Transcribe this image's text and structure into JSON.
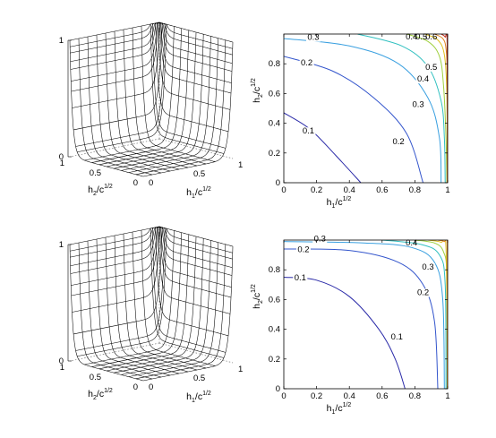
{
  "chart_data": [
    {
      "type": "surface",
      "panel": "top-left",
      "x_label": {
        "base": "h",
        "sub": "1",
        "tail": "/c",
        "sup": "1/2"
      },
      "y_label": {
        "base": "h",
        "sub": "2",
        "tail": "/c",
        "sup": "1/2"
      },
      "z_ticks": [
        "0",
        "1"
      ],
      "x_ticks": [
        "0",
        "0.5",
        "1"
      ],
      "y_ticks": [
        "0",
        "0.5",
        "1"
      ],
      "xlim": [
        0,
        1
      ],
      "ylim": [
        0,
        1
      ],
      "zlim": [
        0,
        1
      ],
      "surface_shape": "near 0 across the interior, rising steeply to 1 along the h1 = 1 and h2 = 1 edges"
    },
    {
      "type": "contour",
      "panel": "top-right",
      "x_label": {
        "base": "h",
        "sub": "1",
        "tail": "/c",
        "sup": "1/2"
      },
      "y_label": {
        "base": "h",
        "sub": "2",
        "tail": "/c",
        "sup": "1/2"
      },
      "x_ticks": [
        "0",
        "0.2",
        "0.4",
        "0.6",
        "0.8",
        "1"
      ],
      "y_ticks": [
        "0",
        "0.2",
        "0.4",
        "0.6",
        "0.8"
      ],
      "xlim": [
        0,
        1
      ],
      "ylim": [
        0,
        1
      ],
      "levels": [
        {
          "value": "0.1",
          "color": "#2a2aa8",
          "points": [
            [
              0,
              0.47
            ],
            [
              0.16,
              0.36
            ],
            [
              0.32,
              0.18
            ],
            [
              0.47,
              0
            ]
          ],
          "label_at": [
            0.15,
            0.33
          ]
        },
        {
          "value": "0.2",
          "color": "#3355cc",
          "points": [
            [
              0,
              0.85
            ],
            [
              0.3,
              0.75
            ],
            [
              0.55,
              0.57
            ],
            [
              0.75,
              0.33
            ],
            [
              0.85,
              0
            ]
          ],
          "label_at": [
            0.14,
            0.79
          ]
        },
        {
          "value": "0.2",
          "color": "#3355cc",
          "points": [],
          "label_at": [
            0.7,
            0.26
          ]
        },
        {
          "value": "0.3",
          "color": "#3aa0e0",
          "points": [
            [
              0,
              0.97
            ],
            [
              0.4,
              0.92
            ],
            [
              0.7,
              0.8
            ],
            [
              0.88,
              0.57
            ],
            [
              0.95,
              0.3
            ],
            [
              0.96,
              0
            ]
          ],
          "label_at": [
            0.18,
            0.96
          ]
        },
        {
          "value": "0.3",
          "color": "#3aa0e0",
          "points": [],
          "label_at": [
            0.82,
            0.51
          ]
        },
        {
          "value": "0.4",
          "color": "#30c0c0",
          "points": [
            [
              0.45,
              1
            ],
            [
              0.72,
              0.92
            ],
            [
              0.88,
              0.78
            ],
            [
              0.96,
              0.55
            ],
            [
              0.98,
              0.3
            ],
            [
              0.985,
              0
            ]
          ],
          "label_at": [
            0.85,
            0.68
          ]
        },
        {
          "value": "0.5",
          "color": "#a0d040",
          "points": [
            [
              0.75,
              1
            ],
            [
              0.88,
              0.95
            ],
            [
              0.95,
              0.85
            ],
            [
              0.975,
              0.65
            ],
            [
              0.99,
              0.3
            ],
            [
              0.995,
              0
            ]
          ],
          "label_at": [
            0.9,
            0.76
          ]
        },
        {
          "value": "0.6",
          "color": "#e0c020",
          "points": [
            [
              0.86,
              1
            ],
            [
              0.94,
              0.96
            ],
            [
              0.98,
              0.86
            ],
            [
              0.995,
              0.6
            ],
            [
              0.998,
              0
            ]
          ],
          "label_at": []
        },
        {
          "value": "0.7",
          "color": "#e08020",
          "points": [
            [
              0.92,
              1
            ],
            [
              0.97,
              0.97
            ],
            [
              0.99,
              0.9
            ],
            [
              0.998,
              0.7
            ],
            [
              0.999,
              0
            ]
          ],
          "label_at": []
        },
        {
          "value": "0.8",
          "color": "#c03020",
          "points": [
            [
              0.96,
              1
            ],
            [
              0.985,
              0.98
            ],
            [
              0.997,
              0.93
            ],
            [
              0.9995,
              0
            ]
          ],
          "label_at": []
        }
      ],
      "edge_labels": [
        "0.4",
        "0.5",
        "0.6"
      ]
    },
    {
      "type": "surface",
      "panel": "bottom-left",
      "x_label": {
        "base": "h",
        "sub": "1",
        "tail": "/c",
        "sup": "1/2"
      },
      "y_label": {
        "base": "h",
        "sub": "2",
        "tail": "/c",
        "sup": "1/2"
      },
      "z_ticks": [
        "0",
        "1"
      ],
      "x_ticks": [
        "0",
        "0.5",
        "1"
      ],
      "y_ticks": [
        "0",
        "0.5",
        "1"
      ],
      "xlim": [
        0,
        1
      ],
      "ylim": [
        0,
        1
      ],
      "zlim": [
        0,
        1
      ],
      "surface_shape": "near 0 across the interior, rising steeply to 1 along the h1 = 1 and h2 = 1 edges"
    },
    {
      "type": "contour",
      "panel": "bottom-right",
      "x_label": {
        "base": "h",
        "sub": "1",
        "tail": "/c",
        "sup": "1/2"
      },
      "y_label": {
        "base": "h",
        "sub": "2",
        "tail": "/c",
        "sup": "1/2"
      },
      "x_ticks": [
        "0",
        "0.2",
        "0.4",
        "0.6",
        "0.8",
        "1"
      ],
      "y_ticks": [
        "0",
        "0.2",
        "0.4",
        "0.6",
        "0.8"
      ],
      "xlim": [
        0,
        1
      ],
      "ylim": [
        0,
        1
      ],
      "levels": [
        {
          "value": "0.1",
          "color": "#2a2aa8",
          "points": [
            [
              0,
              0.75
            ],
            [
              0.2,
              0.73
            ],
            [
              0.4,
              0.62
            ],
            [
              0.58,
              0.4
            ],
            [
              0.68,
              0.2
            ],
            [
              0.74,
              0
            ]
          ],
          "label_at": [
            0.1,
            0.73
          ]
        },
        {
          "value": "0.1",
          "color": "#2a2aa8",
          "points": [],
          "label_at": [
            0.69,
            0.33
          ]
        },
        {
          "value": "0.2",
          "color": "#3355cc",
          "points": [
            [
              0,
              0.94
            ],
            [
              0.4,
              0.93
            ],
            [
              0.7,
              0.85
            ],
            [
              0.85,
              0.7
            ],
            [
              0.92,
              0.45
            ],
            [
              0.94,
              0
            ]
          ],
          "label_at": [
            0.12,
            0.92
          ]
        },
        {
          "value": "0.2",
          "color": "#3355cc",
          "points": [],
          "label_at": [
            0.85,
            0.63
          ]
        },
        {
          "value": "0.3",
          "color": "#3aa0e0",
          "points": [
            [
              0,
              0.99
            ],
            [
              0.5,
              0.98
            ],
            [
              0.78,
              0.95
            ],
            [
              0.92,
              0.85
            ],
            [
              0.97,
              0.6
            ],
            [
              0.98,
              0
            ]
          ],
          "label_at": [
            0.22,
            0.99
          ]
        },
        {
          "value": "0.3",
          "color": "#3aa0e0",
          "points": [],
          "label_at": [
            0.88,
            0.8
          ]
        },
        {
          "value": "0.4",
          "color": "#30c0c0",
          "points": [
            [
              0.6,
              1
            ],
            [
              0.84,
              0.97
            ],
            [
              0.95,
              0.9
            ],
            [
              0.985,
              0.7
            ],
            [
              0.99,
              0
            ]
          ],
          "label_at": []
        },
        {
          "value": "0.5",
          "color": "#a0d040",
          "points": [
            [
              0.8,
              1
            ],
            [
              0.92,
              0.98
            ],
            [
              0.975,
              0.92
            ],
            [
              0.995,
              0.75
            ],
            [
              0.997,
              0
            ]
          ],
          "label_at": []
        },
        {
          "value": "0.6",
          "color": "#e0c020",
          "points": [
            [
              0.88,
              1
            ],
            [
              0.96,
              0.985
            ],
            [
              0.99,
              0.94
            ],
            [
              0.998,
              0
            ]
          ],
          "label_at": []
        },
        {
          "value": "0.7",
          "color": "#e08020",
          "points": [
            [
              0.94,
              1
            ],
            [
              0.98,
              0.99
            ],
            [
              0.997,
              0.96
            ],
            [
              0.999,
              0
            ]
          ],
          "label_at": []
        }
      ],
      "edge_labels": [
        "0.4"
      ]
    }
  ]
}
